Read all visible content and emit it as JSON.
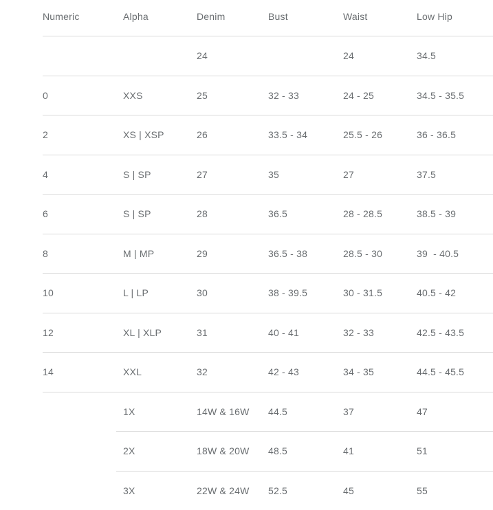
{
  "chart_data": {
    "type": "table",
    "columns": [
      "Numeric",
      "Alpha",
      "Denim",
      "Bust",
      "Waist",
      "Low Hip"
    ],
    "rows": [
      [
        "",
        "",
        "24",
        "",
        "24",
        "34.5"
      ],
      [
        "0",
        "XXS",
        "25",
        "32 - 33",
        "24 - 25",
        "34.5 - 35.5"
      ],
      [
        "2",
        "XS | XSP",
        "26",
        "33.5 - 34",
        "25.5 - 26",
        "36 - 36.5"
      ],
      [
        "4",
        "S | SP",
        "27",
        "35",
        "27",
        "37.5"
      ],
      [
        "6",
        "S | SP",
        "28",
        "36.5",
        "28 - 28.5",
        "38.5 - 39"
      ],
      [
        "8",
        "M | MP",
        "29",
        "36.5 - 38",
        "28.5 - 30",
        "39  - 40.5"
      ],
      [
        "10",
        "L | LP",
        "30",
        "38 - 39.5",
        "30 - 31.5",
        "40.5 - 42"
      ],
      [
        "12",
        "XL | XLP",
        "31",
        "40 - 41",
        "32 - 33",
        "42.5 - 43.5"
      ],
      [
        "14",
        "XXL",
        "32",
        "42 - 43",
        "34 - 35",
        "44.5 - 45.5"
      ],
      [
        "",
        "1X",
        "14W & 16W",
        "44.5",
        "37",
        "47"
      ],
      [
        "",
        "2X",
        "18W & 20W",
        "48.5",
        "41",
        "51"
      ],
      [
        "",
        "3X",
        "22W & 24W",
        "52.5",
        "45",
        "55"
      ]
    ],
    "row_dividers": [
      "full",
      "full",
      "full",
      "full",
      "full",
      "full",
      "full",
      "full",
      "full",
      "indent",
      "indent",
      "none"
    ]
  },
  "colors": {
    "text": "#696d70",
    "divider": "#d9d9d9",
    "background": "#ffffff"
  }
}
